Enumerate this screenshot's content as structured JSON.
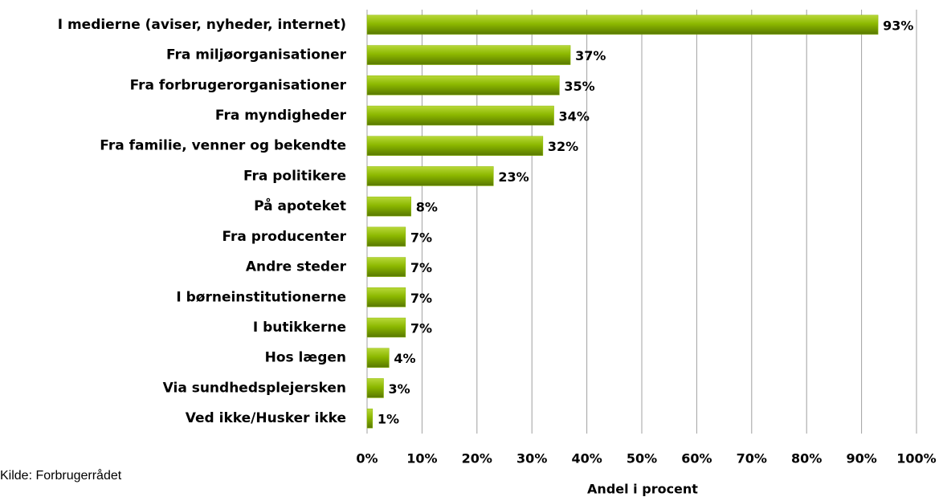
{
  "chart_data": {
    "type": "bar",
    "orientation": "horizontal",
    "categories": [
      "I medierne (aviser, nyheder, internet)",
      "Fra miljøorganisationer",
      "Fra forbrugerorganisationer",
      "Fra myndigheder",
      "Fra familie, venner og bekendte",
      "Fra politikere",
      "På apoteket",
      "Fra producenter",
      "Andre steder",
      "I børneinstitutionerne",
      "I butikkerne",
      "Hos lægen",
      "Via sundhedsplejersken",
      "Ved ikke/Husker ikke"
    ],
    "values": [
      93,
      37,
      35,
      34,
      32,
      23,
      8,
      7,
      7,
      7,
      7,
      4,
      3,
      1
    ],
    "value_labels": [
      "93%",
      "37%",
      "35%",
      "34%",
      "32%",
      "23%",
      "8%",
      "7%",
      "7%",
      "7%",
      "7%",
      "4%",
      "3%",
      "1%"
    ],
    "color": "#8cb800",
    "xlim": [
      0,
      100
    ],
    "xticks": [
      {
        "value": 0,
        "label": "0%"
      },
      {
        "value": 10,
        "label": "10%"
      },
      {
        "value": 20,
        "label": "20%"
      },
      {
        "value": 30,
        "label": "30%"
      },
      {
        "value": 40,
        "label": "40%"
      },
      {
        "value": 50,
        "label": "50%"
      },
      {
        "value": 60,
        "label": "60%"
      },
      {
        "value": 70,
        "label": "70%"
      },
      {
        "value": 80,
        "label": "80%"
      },
      {
        "value": 90,
        "label": "90%"
      },
      {
        "value": 100,
        "label": "100%"
      }
    ],
    "xlabel": "Andel i procent",
    "source": "Kilde: Forbrugerrådet",
    "grid": true
  }
}
